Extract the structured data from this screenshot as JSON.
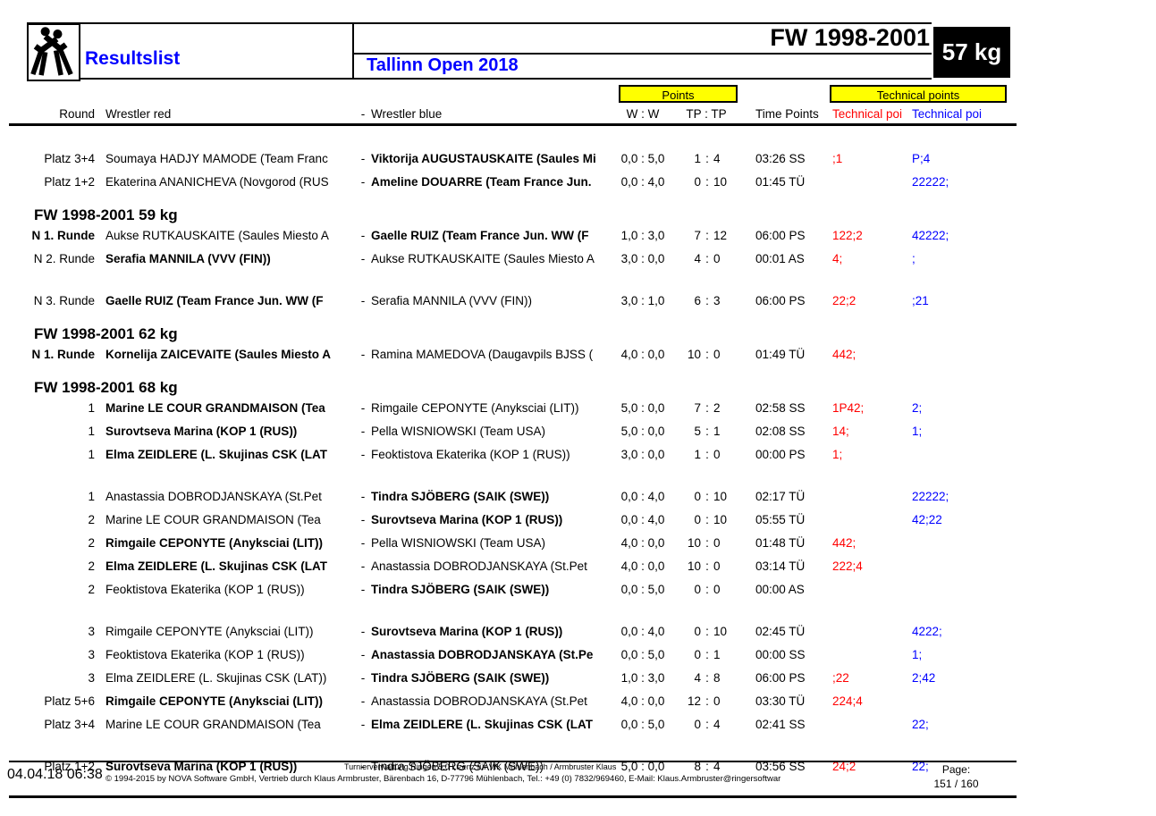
{
  "header": {
    "title": "Resultslist",
    "event": "Tallinn Open 2018",
    "category": "FW 1998-2001",
    "weight": "57 kg",
    "logo": "wrestlers-pictogram"
  },
  "colors": {
    "accent_blue": "#0000ff",
    "accent_red": "#ff0000",
    "highlight_yellow": "#ffff00",
    "weight_box_black": "#000000"
  },
  "columns": {
    "round": "Round",
    "wrestler_red": "Wrestler red",
    "separator": "-",
    "wrestler_blue": "Wrestler blue",
    "points_group": "Points",
    "tech_group": "Technical points",
    "ww": "W :  W",
    "tptp": "TP : TP",
    "time_points": "Time Points",
    "tech_red": "Technical poi",
    "tech_blue": "Technical poi"
  },
  "sections": [
    {
      "title": "",
      "groups": [
        [
          {
            "round": "Platz 3+4",
            "round_bold": false,
            "red": "Soumaya HADJY MAMODE (Team Franc",
            "red_bold": false,
            "blue": "Viktorija AUGUSTAUSKAITE (Saules Mi",
            "blue_bold": true,
            "score": "0,0 : 5,0",
            "tp_red": "1",
            "tp_blue": "4",
            "time": "03:26 SS",
            "tech_red": ";1",
            "tech_blue": "P;4"
          },
          {
            "round": "Platz 1+2",
            "round_bold": false,
            "red": "Ekaterina ANANICHEVA (Novgorod (RUS",
            "red_bold": false,
            "blue": "Ameline DOUARRE (Team France Jun.",
            "blue_bold": true,
            "score": "0,0 : 4,0",
            "tp_red": "0",
            "tp_blue": "10",
            "time": "01:45 TÜ",
            "tech_red": "",
            "tech_blue": "22222;"
          }
        ]
      ]
    },
    {
      "title": "FW 1998-2001 59 kg",
      "groups": [
        [
          {
            "round": "N 1. Runde",
            "round_bold": true,
            "red": "Aukse RUTKAUSKAITE (Saules Miesto A",
            "red_bold": false,
            "blue": "Gaelle RUIZ (Team France Jun. WW (F",
            "blue_bold": true,
            "score": "1,0 : 3,0",
            "tp_red": "7",
            "tp_blue": "12",
            "time": "06:00 PS",
            "tech_red": "122;2",
            "tech_blue": "42222;"
          },
          {
            "round": "N 2. Runde",
            "round_bold": false,
            "red": "Serafia MANNILA (VVV (FIN))",
            "red_bold": true,
            "blue": "Aukse RUTKAUSKAITE (Saules Miesto A",
            "blue_bold": false,
            "score": "3,0 : 0,0",
            "tp_red": "4",
            "tp_blue": "0",
            "time": "00:01 AS",
            "tech_red": "4;",
            "tech_blue": ";"
          }
        ],
        [
          {
            "round": "N 3. Runde",
            "round_bold": false,
            "red": "Gaelle RUIZ (Team France Jun. WW (F",
            "red_bold": true,
            "blue": "Serafia MANNILA (VVV (FIN))",
            "blue_bold": false,
            "score": "3,0 : 1,0",
            "tp_red": "6",
            "tp_blue": "3",
            "time": "06:00 PS",
            "tech_red": "22;2",
            "tech_blue": ";21"
          }
        ]
      ]
    },
    {
      "title": "FW 1998-2001 62 kg",
      "groups": [
        [
          {
            "round": "N 1. Runde",
            "round_bold": true,
            "red": "Kornelija ZAICEVAITE (Saules Miesto A",
            "red_bold": true,
            "blue": "Ramina MAMEDOVA (Daugavpils BJSS (",
            "blue_bold": false,
            "score": "4,0 : 0,0",
            "tp_red": "10",
            "tp_blue": "0",
            "time": "01:49 TÜ",
            "tech_red": "442;",
            "tech_blue": ""
          }
        ]
      ]
    },
    {
      "title": "FW 1998-2001 68 kg",
      "groups": [
        [
          {
            "round": "1",
            "round_bold": false,
            "red": "Marine LE COUR GRANDMAISON (Tea",
            "red_bold": true,
            "blue": "Rimgaile CEPONYTE (Anyksciai (LIT))",
            "blue_bold": false,
            "score": "5,0 : 0,0",
            "tp_red": "7",
            "tp_blue": "2",
            "time": "02:58 SS",
            "tech_red": "1P42;",
            "tech_blue": "2;"
          },
          {
            "round": "1",
            "round_bold": false,
            "red": "Surovtseva Marina (KOP 1 (RUS))",
            "red_bold": true,
            "blue": "Pella WISNIOWSKI (Team USA)",
            "blue_bold": false,
            "score": "5,0 : 0,0",
            "tp_red": "5",
            "tp_blue": "1",
            "time": "02:08 SS",
            "tech_red": "14;",
            "tech_blue": "1;"
          },
          {
            "round": "1",
            "round_bold": false,
            "red": "Elma ZEIDLERE (L. Skujinas CSK (LAT",
            "red_bold": true,
            "blue": "Feoktistova Ekaterika (KOP 1 (RUS))",
            "blue_bold": false,
            "score": "3,0 : 0,0",
            "tp_red": "1",
            "tp_blue": "0",
            "time": "00:00 PS",
            "tech_red": "1;",
            "tech_blue": ""
          }
        ],
        [
          {
            "round": "1",
            "round_bold": false,
            "red": "Anastassia DOBRODJANSKAYA (St.Pet",
            "red_bold": false,
            "blue": "Tindra SJÖBERG (SAIK (SWE))",
            "blue_bold": true,
            "score": "0,0 : 4,0",
            "tp_red": "0",
            "tp_blue": "10",
            "time": "02:17 TÜ",
            "tech_red": "",
            "tech_blue": "22222;"
          },
          {
            "round": "2",
            "round_bold": false,
            "red": "Marine LE COUR GRANDMAISON (Tea",
            "red_bold": false,
            "blue": "Surovtseva Marina (KOP 1 (RUS))",
            "blue_bold": true,
            "score": "0,0 : 4,0",
            "tp_red": "0",
            "tp_blue": "10",
            "time": "05:55 TÜ",
            "tech_red": "",
            "tech_blue": "42;22"
          },
          {
            "round": "2",
            "round_bold": false,
            "red": "Rimgaile CEPONYTE (Anyksciai (LIT))",
            "red_bold": true,
            "blue": "Pella WISNIOWSKI (Team USA)",
            "blue_bold": false,
            "score": "4,0 : 0,0",
            "tp_red": "10",
            "tp_blue": "0",
            "time": "01:48 TÜ",
            "tech_red": "442;",
            "tech_blue": ""
          },
          {
            "round": "2",
            "round_bold": false,
            "red": "Elma ZEIDLERE (L. Skujinas CSK (LAT",
            "red_bold": true,
            "blue": "Anastassia DOBRODJANSKAYA (St.Pet",
            "blue_bold": false,
            "score": "4,0 : 0,0",
            "tp_red": "10",
            "tp_blue": "0",
            "time": "03:14 TÜ",
            "tech_red": "222;4",
            "tech_blue": ""
          },
          {
            "round": "2",
            "round_bold": false,
            "red": "Feoktistova Ekaterika (KOP 1 (RUS))",
            "red_bold": false,
            "blue": "Tindra SJÖBERG (SAIK (SWE))",
            "blue_bold": true,
            "score": "0,0 : 5,0",
            "tp_red": "0",
            "tp_blue": "0",
            "time": "00:00 AS",
            "tech_red": "",
            "tech_blue": ""
          }
        ],
        [
          {
            "round": "3",
            "round_bold": false,
            "red": "Rimgaile CEPONYTE (Anyksciai (LIT))",
            "red_bold": false,
            "blue": "Surovtseva Marina (KOP 1 (RUS))",
            "blue_bold": true,
            "score": "0,0 : 4,0",
            "tp_red": "0",
            "tp_blue": "10",
            "time": "02:45 TÜ",
            "tech_red": "",
            "tech_blue": "4222;"
          },
          {
            "round": "3",
            "round_bold": false,
            "red": "Feoktistova Ekaterika (KOP 1 (RUS))",
            "red_bold": false,
            "blue": "Anastassia DOBRODJANSKAYA (St.Pe",
            "blue_bold": true,
            "score": "0,0 : 5,0",
            "tp_red": "0",
            "tp_blue": "1",
            "time": "00:00 SS",
            "tech_red": "",
            "tech_blue": "1;"
          },
          {
            "round": "3",
            "round_bold": false,
            "red": "Elma ZEIDLERE (L. Skujinas CSK (LAT))",
            "red_bold": false,
            "blue": "Tindra SJÖBERG (SAIK (SWE))",
            "blue_bold": true,
            "score": "1,0 : 3,0",
            "tp_red": "4",
            "tp_blue": "8",
            "time": "06:00 PS",
            "tech_red": ";22",
            "tech_blue": "2;42"
          },
          {
            "round": "Platz 5+6",
            "round_bold": false,
            "red": "Rimgaile CEPONYTE (Anyksciai (LIT))",
            "red_bold": true,
            "blue": "Anastassia DOBRODJANSKAYA (St.Pet",
            "blue_bold": false,
            "score": "4,0 : 0,0",
            "tp_red": "12",
            "tp_blue": "0",
            "time": "03:30 TÜ",
            "tech_red": "224;4",
            "tech_blue": ""
          },
          {
            "round": "Platz 3+4",
            "round_bold": false,
            "red": "Marine LE COUR GRANDMAISON (Tea",
            "red_bold": false,
            "blue": "Elma ZEIDLERE (L. Skujinas CSK (LAT",
            "blue_bold": true,
            "score": "0,0 : 5,0",
            "tp_red": "0",
            "tp_blue": "4",
            "time": "02:41 SS",
            "tech_red": "",
            "tech_blue": "22;"
          }
        ],
        [
          {
            "round": "Platz 1+2",
            "round_bold": false,
            "red": "Surovtseva Marina (KOP 1 (RUS))",
            "red_bold": true,
            "blue": "Tindra SJÖBERG (SAIK (SWE))",
            "blue_bold": false,
            "score": "5,0 : 0,0",
            "tp_red": "8",
            "tp_blue": "4",
            "time": "03:56 SS",
            "tech_red": "24;2",
            "tech_blue": "22;"
          }
        ]
      ]
    }
  ],
  "footer": {
    "license_line": "Turnierverwaltung Ringen 5.0 Lizenz für VfK Mühlenbach / Armbruster Klaus",
    "date_time": "04.04.18 06:38",
    "copyright_line": "© 1994-2015 by NOVA Software GmbH, Vertrieb durch Klaus Armbruster, Bärenbach 16, D-77796 Mühlenbach, Tel.: +49 (0) 7832/969460, E-Mail: Klaus.Armbruster@ringersoftwar",
    "page_label": "Page:",
    "page_number": "151 / 160"
  }
}
